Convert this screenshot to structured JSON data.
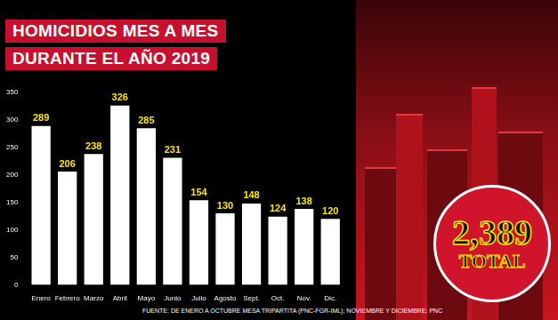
{
  "chart_data": {
    "type": "bar",
    "title": [
      "HOMICIDIOS MES A MES",
      "DURANTE EL AÑO 2019"
    ],
    "categories": [
      "Enero",
      "Febrero",
      "Marzo",
      "Abril",
      "Mayo",
      "Junio",
      "Julio",
      "Agosto",
      "Sept.",
      "Oct.",
      "Nov.",
      "Dic."
    ],
    "values": [
      289,
      206,
      238,
      326,
      285,
      231,
      154,
      130,
      148,
      124,
      138,
      120
    ],
    "color": "#ffffff",
    "ylim": [
      0,
      350
    ],
    "yticks": [
      0,
      50,
      100,
      150,
      200,
      250,
      300,
      350
    ],
    "grid": false,
    "data_labels": true,
    "annotations": [
      "2,389",
      "TOTAL"
    ],
    "source": "FUENTE: DE ENERO A OCTUBRE MESA TRIPARTITA (PNC-FGR-IML); NOVIEMBRE Y DICIEMBRE: PNC"
  }
}
